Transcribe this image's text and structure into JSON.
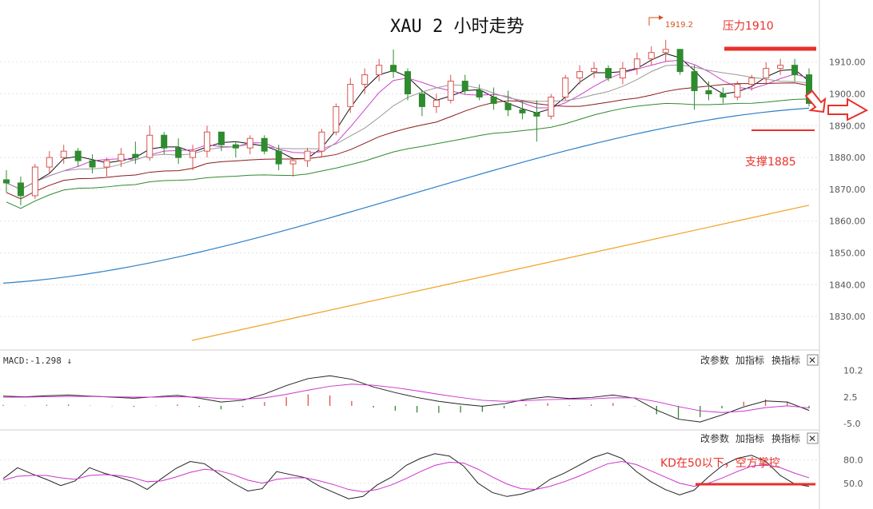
{
  "chart_data": {
    "type": "candlestick",
    "title": "XAU 2 小时走势",
    "y_axis": {
      "ticks": [
        "1910.00",
        "1900.00",
        "1890.00",
        "1880.00",
        "1870.00",
        "1860.00",
        "1850.00",
        "1840.00",
        "1830.00"
      ],
      "ylim": [
        1821,
        1927
      ]
    },
    "candles_ohlc_approx": [
      [
        1873,
        1876,
        1869,
        1872
      ],
      [
        1872,
        1874,
        1865,
        1868
      ],
      [
        1868,
        1878,
        1867,
        1877
      ],
      [
        1877,
        1882,
        1875,
        1880
      ],
      [
        1880,
        1884,
        1878,
        1882
      ],
      [
        1882,
        1883,
        1877,
        1879
      ],
      [
        1879,
        1881,
        1875,
        1877
      ],
      [
        1877,
        1880,
        1874,
        1879
      ],
      [
        1879,
        1883,
        1877,
        1881
      ],
      [
        1881,
        1885,
        1878,
        1880
      ],
      [
        1880,
        1890,
        1879,
        1887
      ],
      [
        1887,
        1888,
        1881,
        1883
      ],
      [
        1883,
        1886,
        1878,
        1880
      ],
      [
        1880,
        1884,
        1876,
        1882
      ],
      [
        1882,
        1890,
        1880,
        1888
      ],
      [
        1888,
        1888,
        1882,
        1884
      ],
      [
        1884,
        1885,
        1880,
        1883
      ],
      [
        1883,
        1887,
        1881,
        1886
      ],
      [
        1886,
        1887,
        1881,
        1882
      ],
      [
        1882,
        1884,
        1876,
        1878
      ],
      [
        1878,
        1880,
        1874,
        1879
      ],
      [
        1879,
        1883,
        1877,
        1882
      ],
      [
        1882,
        1889,
        1880,
        1888
      ],
      [
        1888,
        1897,
        1887,
        1896
      ],
      [
        1896,
        1905,
        1894,
        1903
      ],
      [
        1903,
        1908,
        1900,
        1906
      ],
      [
        1906,
        1911,
        1904,
        1909
      ],
      [
        1909,
        1914,
        1905,
        1907
      ],
      [
        1907,
        1908,
        1898,
        1900
      ],
      [
        1900,
        1901,
        1893,
        1896
      ],
      [
        1896,
        1900,
        1894,
        1898
      ],
      [
        1898,
        1906,
        1897,
        1904
      ],
      [
        1904,
        1906,
        1900,
        1901
      ],
      [
        1901,
        1903,
        1898,
        1899
      ],
      [
        1899,
        1902,
        1895,
        1897
      ],
      [
        1897,
        1901,
        1893,
        1895
      ],
      [
        1895,
        1898,
        1892,
        1894
      ],
      [
        1894,
        1898,
        1885,
        1893
      ],
      [
        1893,
        1900,
        1892,
        1899
      ],
      [
        1899,
        1906,
        1898,
        1905
      ],
      [
        1905,
        1909,
        1903,
        1907
      ],
      [
        1907,
        1910,
        1905,
        1908
      ],
      [
        1908,
        1909,
        1904,
        1905
      ],
      [
        1905,
        1910,
        1903,
        1908
      ],
      [
        1908,
        1913,
        1906,
        1911
      ],
      [
        1911,
        1915,
        1909,
        1913
      ],
      [
        1913,
        1917,
        1910,
        1914
      ],
      [
        1914,
        1914,
        1906,
        1907
      ],
      [
        1907,
        1909,
        1895,
        1901
      ],
      [
        1901,
        1904,
        1898,
        1900
      ],
      [
        1900,
        1902,
        1897,
        1899
      ],
      [
        1899,
        1904,
        1898,
        1903
      ],
      [
        1903,
        1906,
        1901,
        1905
      ],
      [
        1905,
        1910,
        1903,
        1908
      ],
      [
        1908,
        1911,
        1906,
        1909
      ],
      [
        1909,
        1911,
        1904,
        1906
      ],
      [
        1906,
        1908,
        1896,
        1897
      ]
    ],
    "peak_marker": "1919.2",
    "moving_averages": [
      {
        "color": "#111111"
      },
      {
        "color": "#cc44cc"
      },
      {
        "color": "#999999"
      },
      {
        "color": "#8b1a1a"
      },
      {
        "color": "#2e8b2e"
      },
      {
        "color": "#2c7fc6"
      },
      {
        "color": "#f0a020"
      }
    ],
    "annotations": {
      "resistance": {
        "label": "压力1910",
        "value": 1910,
        "color": "#e8312a"
      },
      "support": {
        "label": "支撑1885",
        "value": 1885,
        "color": "#e8312a"
      }
    },
    "macd": {
      "label": "MACD:-1.298 ↓",
      "ticks": [
        "10.2",
        "2.5",
        "-5.0"
      ],
      "line1": [
        2.8,
        2.6,
        2.9,
        3.1,
        2.8,
        2.5,
        2.2,
        2.6,
        3.0,
        2.2,
        1.1,
        1.6,
        3.4,
        5.8,
        7.8,
        8.6,
        7.6,
        5.4,
        3.8,
        2.4,
        1.3,
        0.5,
        -0.1,
        0.6,
        1.9,
        2.6,
        2.1,
        2.4,
        3.1,
        2.2,
        -1.2,
        -3.8,
        -4.6,
        -2.6,
        -0.3,
        1.4,
        1.1,
        -1.3
      ],
      "line2": [
        2.5,
        2.5,
        2.6,
        2.7,
        2.7,
        2.6,
        2.5,
        2.5,
        2.6,
        2.5,
        2.1,
        1.9,
        2.3,
        3.3,
        4.5,
        5.6,
        6.2,
        5.9,
        5.2,
        4.3,
        3.3,
        2.4,
        1.6,
        1.3,
        1.5,
        1.8,
        1.9,
        2.0,
        2.3,
        2.3,
        1.2,
        -0.2,
        -1.4,
        -1.9,
        -1.5,
        -0.5,
        0.0,
        -0.6
      ],
      "hist": [
        0.3,
        0.1,
        0.3,
        0.4,
        0.1,
        -0.1,
        -0.3,
        0.1,
        0.4,
        -0.3,
        -1.0,
        -0.3,
        1.1,
        2.5,
        3.3,
        3.0,
        1.4,
        -0.5,
        -1.4,
        -1.9,
        -2.0,
        -1.9,
        -1.7,
        -0.7,
        0.4,
        0.8,
        0.2,
        0.4,
        0.8,
        -0.1,
        -2.4,
        -3.6,
        -3.2,
        -0.7,
        1.2,
        1.9,
        1.1,
        -0.7
      ]
    },
    "kd": {
      "ticks": [
        "80.0",
        "50.0"
      ],
      "k": [
        56,
        70,
        62,
        55,
        47,
        53,
        70,
        63,
        58,
        52,
        42,
        56,
        69,
        78,
        75,
        62,
        50,
        40,
        43,
        65,
        61,
        57,
        46,
        38,
        30,
        33,
        48,
        58,
        73,
        82,
        88,
        85,
        72,
        50,
        38,
        33,
        36,
        42,
        55,
        63,
        73,
        83,
        89,
        82,
        65,
        52,
        42,
        35,
        41,
        58,
        73,
        82,
        86,
        78,
        60,
        49,
        46
      ],
      "d": [
        54,
        59,
        60,
        60,
        57,
        55,
        60,
        61,
        60,
        57,
        52,
        53,
        58,
        64,
        68,
        66,
        61,
        54,
        50,
        55,
        57,
        57,
        53,
        48,
        42,
        39,
        42,
        48,
        56,
        65,
        73,
        77,
        76,
        68,
        58,
        49,
        43,
        42,
        46,
        52,
        59,
        67,
        75,
        78,
        74,
        66,
        58,
        50,
        46,
        50,
        57,
        65,
        72,
        74,
        70,
        63,
        57
      ]
    },
    "kd_annotation": "KD在50以下，空方掌控"
  },
  "panel_buttons": {
    "modify": "改参数",
    "add": "加指标",
    "switch": "换指标",
    "close": "✕"
  }
}
